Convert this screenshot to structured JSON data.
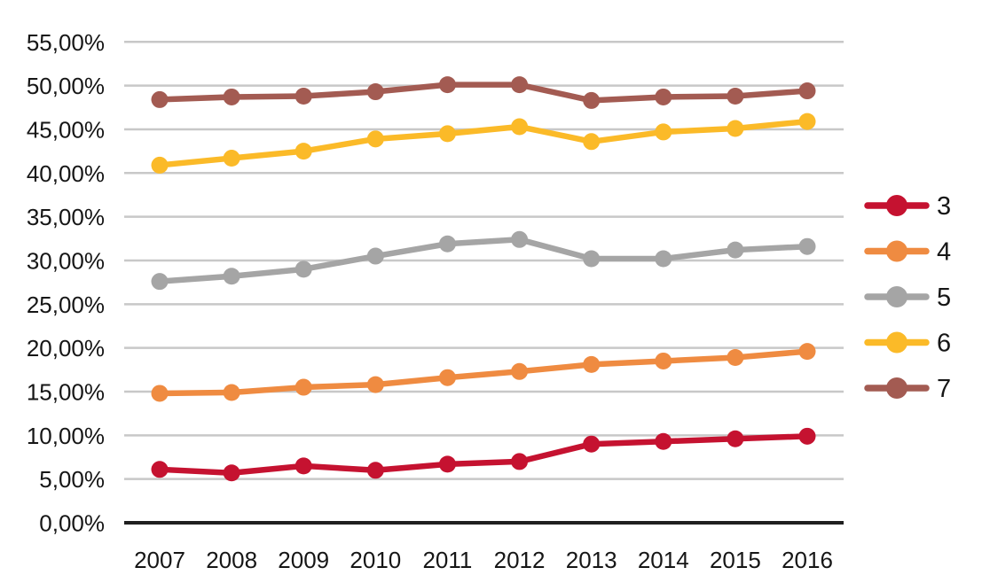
{
  "chart_data": {
    "type": "line",
    "title": "",
    "xlabel": "",
    "ylabel": "",
    "x": [
      "2007",
      "2008",
      "2009",
      "2010",
      "2011",
      "2012",
      "2013",
      "2014",
      "2015",
      "2016"
    ],
    "series": [
      {
        "name": "3",
        "color": "#c51230",
        "values": [
          6.1,
          5.7,
          6.5,
          6.0,
          6.7,
          7.0,
          9.0,
          9.3,
          9.6,
          9.9
        ]
      },
      {
        "name": "4",
        "color": "#ef8b41",
        "values": [
          14.8,
          14.9,
          15.5,
          15.8,
          16.6,
          17.3,
          18.1,
          18.5,
          18.9,
          19.6
        ]
      },
      {
        "name": "5",
        "color": "#a5a5a5",
        "values": [
          27.6,
          28.2,
          29.0,
          30.5,
          31.9,
          32.4,
          30.2,
          30.2,
          31.2,
          31.6
        ]
      },
      {
        "name": "6",
        "color": "#fbba28",
        "values": [
          40.9,
          41.7,
          42.5,
          43.9,
          44.5,
          45.3,
          43.6,
          44.7,
          45.1,
          45.9
        ]
      },
      {
        "name": "7",
        "color": "#a35b52",
        "values": [
          48.4,
          48.7,
          48.8,
          49.3,
          50.1,
          50.1,
          48.3,
          48.7,
          48.8,
          49.4
        ]
      }
    ],
    "ylim": [
      0,
      55
    ],
    "ytick_step": 5,
    "ytick_labels": [
      "0,00%",
      "5,00%",
      "10,00%",
      "15,00%",
      "20,00%",
      "25,00%",
      "30,00%",
      "35,00%",
      "40,00%",
      "45,00%",
      "50,00%",
      "55,00%"
    ],
    "grid": true,
    "legend_position": "right",
    "legend_entries": [
      "3",
      "4",
      "5",
      "6",
      "7"
    ]
  },
  "colors": {
    "background": "#ffffff",
    "gridline": "#c8c8c8",
    "axis_line": "#1f1f1f",
    "text": "#161616"
  }
}
